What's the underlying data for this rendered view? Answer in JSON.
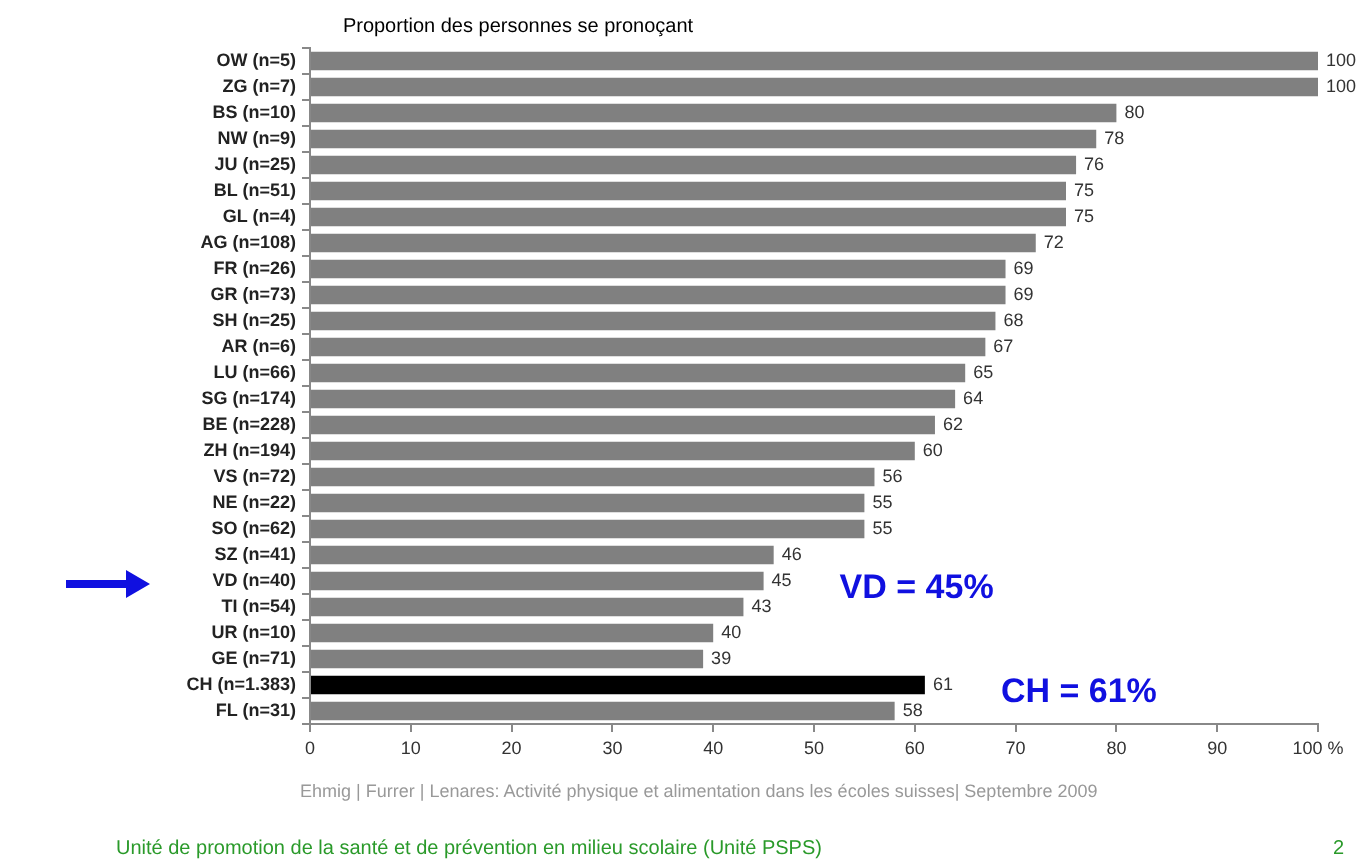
{
  "chart_data": {
    "type": "bar",
    "orientation": "horizontal",
    "title": "Proportion des personnes se pronoçant",
    "categories": [
      "OW (n=5)",
      "ZG (n=7)",
      "BS (n=10)",
      "NW (n=9)",
      "JU (n=25)",
      "BL (n=51)",
      "GL (n=4)",
      "AG (n=108)",
      "FR (n=26)",
      "GR (n=73)",
      "SH (n=25)",
      "AR (n=6)",
      "LU (n=66)",
      "SG (n=174)",
      "BE (n=228)",
      "ZH (n=194)",
      "VS (n=72)",
      "NE (n=22)",
      "SO (n=62)",
      "SZ (n=41)",
      "VD (n=40)",
      "TI (n=54)",
      "UR (n=10)",
      "GE (n=71)",
      "CH (n=1.383)",
      "FL (n=31)"
    ],
    "values": [
      100,
      100,
      80,
      78,
      76,
      75,
      75,
      72,
      69,
      69,
      68,
      67,
      65,
      64,
      62,
      60,
      56,
      55,
      55,
      46,
      45,
      43,
      40,
      39,
      61,
      58
    ],
    "colors": [
      "#808080",
      "#808080",
      "#808080",
      "#808080",
      "#808080",
      "#808080",
      "#808080",
      "#808080",
      "#808080",
      "#808080",
      "#808080",
      "#808080",
      "#808080",
      "#808080",
      "#808080",
      "#808080",
      "#808080",
      "#808080",
      "#808080",
      "#808080",
      "#808080",
      "#808080",
      "#808080",
      "#808080",
      "#000000",
      "#808080"
    ],
    "xlim": [
      0,
      100
    ],
    "xticks": [
      0,
      10,
      20,
      30,
      40,
      50,
      60,
      70,
      80,
      90,
      {
        "value": 100,
        "label": "100 %"
      }
    ],
    "data_labels": true,
    "legend": false,
    "annotations": [
      {
        "text": "VD = 45%",
        "x": 45,
        "y": "VD (n=40)"
      },
      {
        "text": "CH = 61%",
        "x": 61,
        "y": "CH (n=1.383)"
      },
      "Ehmig | Furrer | Lenares: Activité physique et alimentation dans les écoles suisses| Septembre 2009",
      "Unité de promotion de la santé et de prévention en milieu scolaire (Unité PSPS)",
      "2"
    ]
  }
}
